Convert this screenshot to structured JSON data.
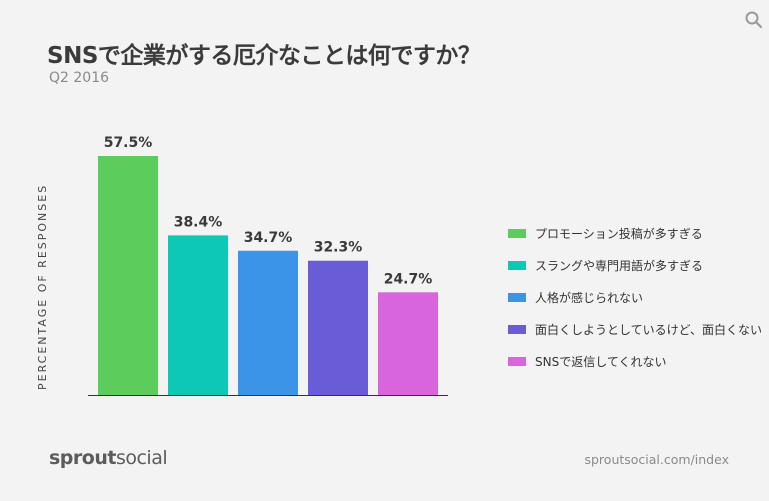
{
  "chart_data": {
    "type": "bar",
    "title": "SNSで企業がする厄介なことは何ですか？",
    "subtitle": "Q2 2016",
    "ylabel": "PERCENTAGE OF RESPONSES",
    "ylim": [
      0,
      57.5
    ],
    "categories": [
      "プロモーション投稿が多すぎる",
      "スラングや専門用語が多すぎる",
      "人格が感じられない",
      "面白くしようとしているけど、面白くない",
      "SNSで返信してくれない"
    ],
    "values": [
      57.5,
      38.4,
      34.7,
      32.3,
      24.7
    ],
    "value_labels": [
      "57.5%",
      "38.4%",
      "34.7%",
      "32.3%",
      "24.7%"
    ],
    "colors": [
      "#5ccc5c",
      "#0ec8b6",
      "#3b94e8",
      "#6a5bd6",
      "#d865dc"
    ],
    "legend_position": "right"
  },
  "brand": {
    "sprout": "sprout",
    "social": "social"
  },
  "footer": {
    "url": "sproutsocial.com/index"
  },
  "icons": {
    "search": "search-icon"
  }
}
